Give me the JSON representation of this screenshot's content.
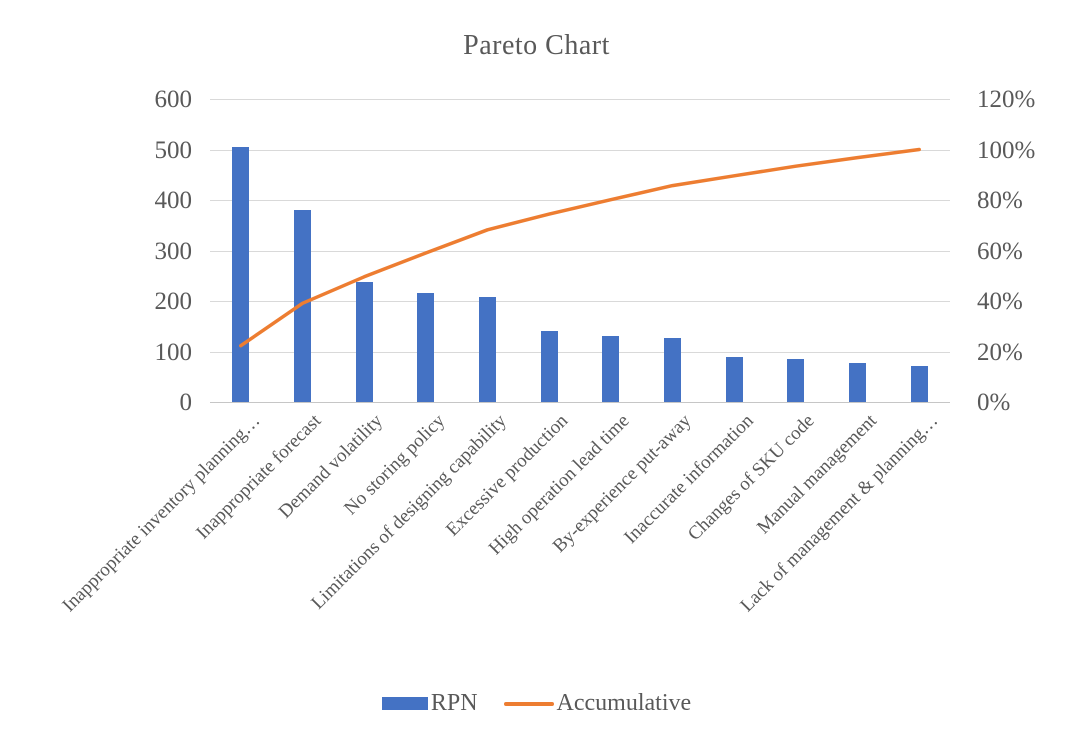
{
  "chart_data": {
    "type": "bar",
    "subtype": "pareto-combo-bar-line",
    "title": "Pareto Chart",
    "categories": [
      "Inappropriate inventory planning…",
      "Inappropriate forecast",
      "Demand volatility",
      "No storing policy",
      "Limitations of designing capability",
      "Excessive production",
      "High operation lead time",
      "By-experience put-away",
      "Inaccurate information",
      "Changes of SKU code",
      "Manual management",
      "Lack of management & planning…"
    ],
    "series": [
      {
        "name": "RPN",
        "type": "bar",
        "color": "#4472C4",
        "axis": "left",
        "values": [
          505,
          380,
          238,
          215,
          207,
          140,
          130,
          126,
          90,
          85,
          78,
          72
        ]
      },
      {
        "name": "Accumulative",
        "type": "line",
        "color": "#ED7D31",
        "axis": "right",
        "values_percent": [
          22.3,
          39.1,
          49.6,
          59.0,
          68.2,
          74.4,
          80.1,
          85.7,
          89.6,
          93.4,
          96.8,
          100.0
        ]
      }
    ],
    "left_axis": {
      "min": 0,
      "max": 600,
      "tick_labels": [
        "0",
        "100",
        "200",
        "300",
        "400",
        "500",
        "600"
      ]
    },
    "right_axis": {
      "min_percent": 0,
      "max_percent": 120,
      "tick_labels": [
        "0%",
        "20%",
        "40%",
        "60%",
        "80%",
        "100%",
        "120%"
      ]
    },
    "grid": true,
    "legend_position": "bottom",
    "xlabel": "",
    "ylabel": ""
  },
  "colors": {
    "bar": "#4472C4",
    "line": "#ED7D31",
    "text": "#595959",
    "gridline": "#D9D9D9",
    "axis_line": "#C6C6C6",
    "background": "#FFFFFF"
  }
}
